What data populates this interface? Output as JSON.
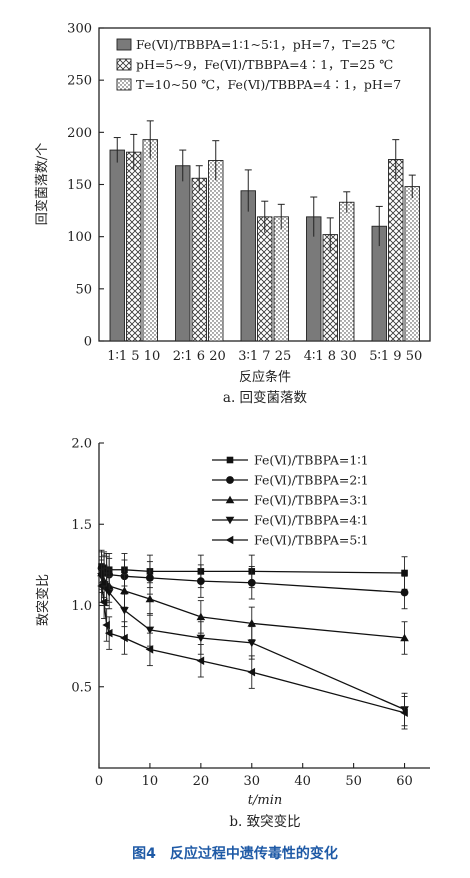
{
  "chart_data": [
    {
      "type": "bar",
      "title": "",
      "xlabel": "反应条件",
      "ylabel": "回变菌落数/个",
      "ylim": [
        0,
        300
      ],
      "yticks": [
        "0",
        "50",
        "100",
        "150",
        "200",
        "250",
        "300"
      ],
      "caption": "a. 回变菌落数",
      "groups": [
        {
          "label": "1∶1 5 10",
          "series_index": 0,
          "values": [
            183,
            181,
            193
          ],
          "errors": [
            12,
            17,
            18
          ]
        },
        {
          "label": "2∶1 6 20",
          "series_index": 1,
          "values": [
            168,
            156,
            173
          ],
          "errors": [
            15,
            12,
            19
          ]
        },
        {
          "label": "3∶1 7 25",
          "series_index": 2,
          "values": [
            144,
            119,
            119
          ],
          "errors": [
            20,
            15,
            12
          ]
        },
        {
          "label": "4∶1 8 30",
          "series_index": 3,
          "values": [
            119,
            102,
            133
          ],
          "errors": [
            19,
            16,
            10
          ]
        },
        {
          "label": "5∶1 9 50",
          "series_index": 4,
          "values": [
            110,
            174,
            148
          ],
          "errors": [
            19,
            19,
            11
          ]
        }
      ],
      "series": [
        {
          "name": "Fe(Ⅵ)/TBBPA=1∶1~5∶1，pH=7，T=25 ℃",
          "pattern": "solid-gray"
        },
        {
          "name": "pH=5~9，Fe(Ⅵ)/TBBPA=4∶1，T=25 ℃",
          "pattern": "crosshatch"
        },
        {
          "name": "T=10~50 ℃，Fe(Ⅵ)/TBBPA=4∶1，pH=7",
          "pattern": "dotted"
        }
      ],
      "legend": "top-left",
      "grid": false
    },
    {
      "type": "line",
      "title": "",
      "xlabel": "t/min",
      "ylabel": "致突变比",
      "xlim": [
        0,
        65
      ],
      "ylim": [
        0,
        2.0
      ],
      "xticks": [
        "0",
        "10",
        "20",
        "30",
        "40",
        "50",
        "60"
      ],
      "yticks": [
        "0.5",
        "1.0",
        "1.5",
        "2.0"
      ],
      "caption": "b. 致突变比",
      "x": [
        0.5,
        1,
        1.5,
        2,
        5,
        10,
        20,
        30,
        60
      ],
      "series": [
        {
          "name": "Fe(Ⅵ)/TBBPA=1∶1",
          "marker": "square",
          "values": [
            1.24,
            1.23,
            1.22,
            1.22,
            1.22,
            1.21,
            1.21,
            1.21,
            1.2
          ],
          "errors": 0.1
        },
        {
          "name": "Fe(Ⅵ)/TBBPA=2∶1",
          "marker": "circle",
          "values": [
            1.23,
            1.21,
            1.2,
            1.19,
            1.18,
            1.17,
            1.15,
            1.14,
            1.08
          ],
          "errors": 0.1
        },
        {
          "name": "Fe(Ⅵ)/TBBPA=3∶1",
          "marker": "triangle-up",
          "values": [
            1.2,
            1.15,
            1.13,
            1.12,
            1.09,
            1.04,
            0.93,
            0.89,
            0.8
          ],
          "errors": 0.1
        },
        {
          "name": "Fe(Ⅵ)/TBBPA=4∶1",
          "marker": "triangle-down",
          "values": [
            1.18,
            1.13,
            1.1,
            1.08,
            0.97,
            0.85,
            0.8,
            0.77,
            0.36
          ],
          "errors": 0.1
        },
        {
          "name": "Fe(Ⅵ)/TBBPA=5∶1",
          "marker": "triangle-left",
          "values": [
            1.12,
            1.02,
            0.88,
            0.83,
            0.8,
            0.73,
            0.66,
            0.59,
            0.34
          ],
          "errors": 0.1
        }
      ],
      "legend": "top-right",
      "grid": false
    }
  ],
  "figure_caption": "图4　反应过程中遗传毒性的变化"
}
